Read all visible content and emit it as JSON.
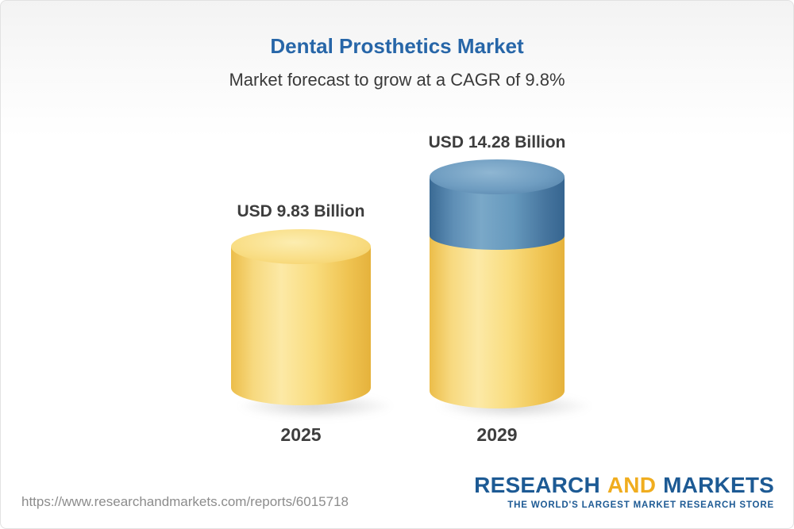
{
  "header": {
    "title": "Dental Prosthetics Market",
    "subtitle": "Market forecast to grow at a CAGR of 9.8%"
  },
  "chart_data": {
    "type": "bar",
    "title": "Dental Prosthetics Market",
    "subtitle": "Market forecast to grow at a CAGR of 9.8%",
    "cagr_percent": 9.8,
    "unit": "USD Billion",
    "categories": [
      "2025",
      "2029"
    ],
    "values": [
      9.83,
      14.28
    ],
    "bars": [
      {
        "category": "2025",
        "value": 9.83,
        "label": "USD 9.83 Billion",
        "segments": [
          {
            "name": "base",
            "value": 9.83,
            "color": "#f6d36b"
          }
        ]
      },
      {
        "category": "2029",
        "value": 14.28,
        "label": "USD 14.28 Billion",
        "segments": [
          {
            "name": "base",
            "value": 9.83,
            "color": "#f6d36b"
          },
          {
            "name": "growth",
            "value": 4.45,
            "color": "#6f9dc1"
          }
        ]
      }
    ],
    "legend": false,
    "axes": false,
    "colors": {
      "base_yellow": "#f6d36b",
      "growth_blue": "#6f9dc1",
      "title_blue": "#2766a8"
    }
  },
  "footer": {
    "url": "https://www.researchandmarkets.com/reports/6015718",
    "logo": {
      "research": "RESEARCH",
      "and": "AND",
      "markets": "MARKETS",
      "tagline": "THE WORLD'S LARGEST MARKET RESEARCH STORE"
    }
  }
}
